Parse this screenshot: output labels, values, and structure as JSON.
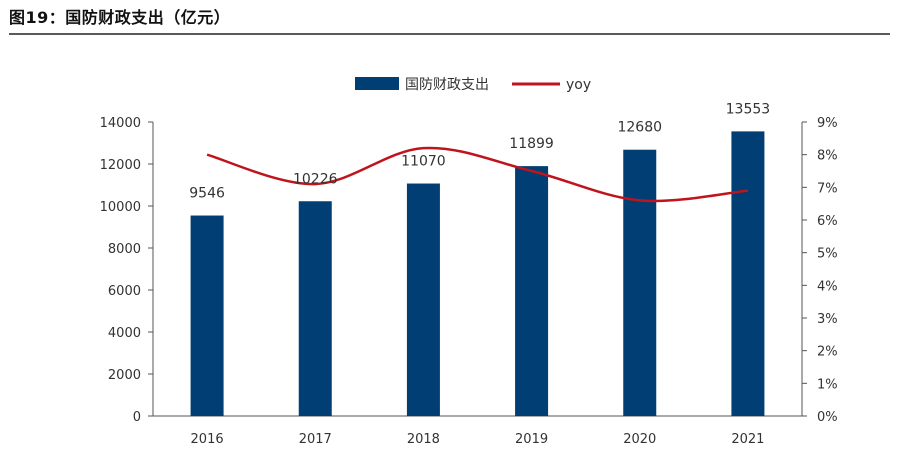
{
  "figure": {
    "title": "图19：国防财政支出（亿元）"
  },
  "chart_data": {
    "type": "bar",
    "categories": [
      "2016",
      "2017",
      "2018",
      "2019",
      "2020",
      "2021"
    ],
    "series": [
      {
        "name": "国防财政支出",
        "type": "bar",
        "axis": "left",
        "values": [
          9546,
          10226,
          11070,
          11899,
          12680,
          13553
        ]
      },
      {
        "name": "yoy",
        "type": "line",
        "axis": "right",
        "values": [
          8.0,
          7.1,
          8.2,
          7.5,
          6.6,
          6.9
        ]
      }
    ],
    "data_labels": [
      "9546",
      "10226",
      "11070",
      "11899",
      "12680",
      "13553"
    ],
    "ylim": [
      0,
      14000
    ],
    "yticks": [
      "0",
      "2000",
      "4000",
      "6000",
      "8000",
      "10000",
      "12000",
      "14000"
    ],
    "y2lim": [
      0,
      9
    ],
    "y2ticks": [
      "0%",
      "1%",
      "2%",
      "3%",
      "4%",
      "5%",
      "6%",
      "7%",
      "8%",
      "9%"
    ],
    "legend": "top-center",
    "grid": false,
    "colors": {
      "bar": "#003e73",
      "line": "#c0141c"
    }
  }
}
